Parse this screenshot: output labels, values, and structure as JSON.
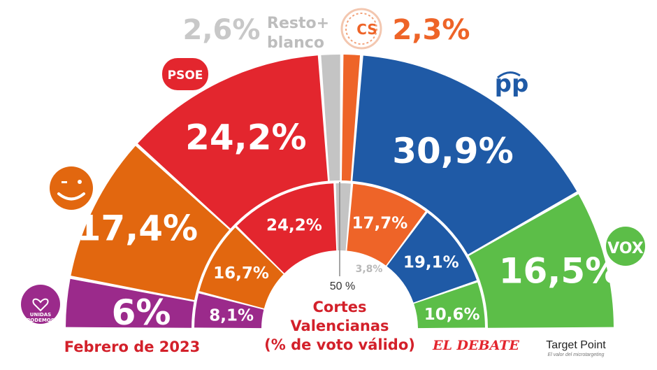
{
  "chart_data": [
    {
      "type": "half-donut",
      "ring": "outer",
      "categories": [
        "Unidas Podemos",
        "Compromís",
        "PSOE",
        "Resto+blanco",
        "CS",
        "PP",
        "VOX"
      ],
      "values": [
        6,
        17.4,
        24.2,
        2.6,
        2.3,
        30.9,
        16.5
      ],
      "labels": [
        "6%",
        "17,4%",
        "24,2%",
        "2,6%",
        "2,3%",
        "30,9%",
        "16,5%"
      ],
      "colors": [
        "#9b2a8b",
        "#e2670f",
        "#e3262e",
        "#c4c4c4",
        "#ee6428",
        "#1f5aa6",
        "#5cbe48"
      ]
    },
    {
      "type": "half-donut",
      "ring": "inner",
      "categories": [
        "Unidas Podemos",
        "Compromís",
        "PSOE",
        "Resto+blanco",
        "CS",
        "PP",
        "VOX"
      ],
      "values": [
        8.1,
        16.7,
        24.2,
        3.8,
        17.7,
        19.1,
        10.6
      ],
      "labels": [
        "8,1%",
        "16,7%",
        "24,2%",
        "3,8%",
        "17,7%",
        "19,1%",
        "10,6%"
      ],
      "colors": [
        "#9b2a8b",
        "#e2670f",
        "#e3262e",
        "#c4c4c4",
        "#ee6428",
        "#1f5aa6",
        "#5cbe48"
      ]
    }
  ],
  "header": {
    "resto_value": "2,6%",
    "resto_label_1": "Resto+",
    "resto_label_2": "blanco",
    "cs_logo": "CS",
    "cs_value": "2,3%"
  },
  "logos": {
    "psoe": "PSOE",
    "pp": "pp",
    "vox": "VOX",
    "unidas_1": "UNIDAS",
    "unidas_2": "PODEMOS",
    "compromis_icon": "smiley-face-icon"
  },
  "center": {
    "fifty": "50 %",
    "title_1": "Cortes",
    "title_2": "Valencianas",
    "title_3": "(% de voto válido)"
  },
  "footer": {
    "date": "Febrero de 2023",
    "brand": "EL DEBATE",
    "tp_title": "Target Point",
    "tp_sub": "El valor del microtargeting"
  },
  "colors": {
    "podemos": "#9b2a8b",
    "compromis": "#e2670f",
    "psoe": "#e3262e",
    "resto": "#c4c4c4",
    "cs": "#ee6428",
    "pp": "#1f5aa6",
    "vox": "#5cbe48",
    "title_red": "#d3202a"
  }
}
